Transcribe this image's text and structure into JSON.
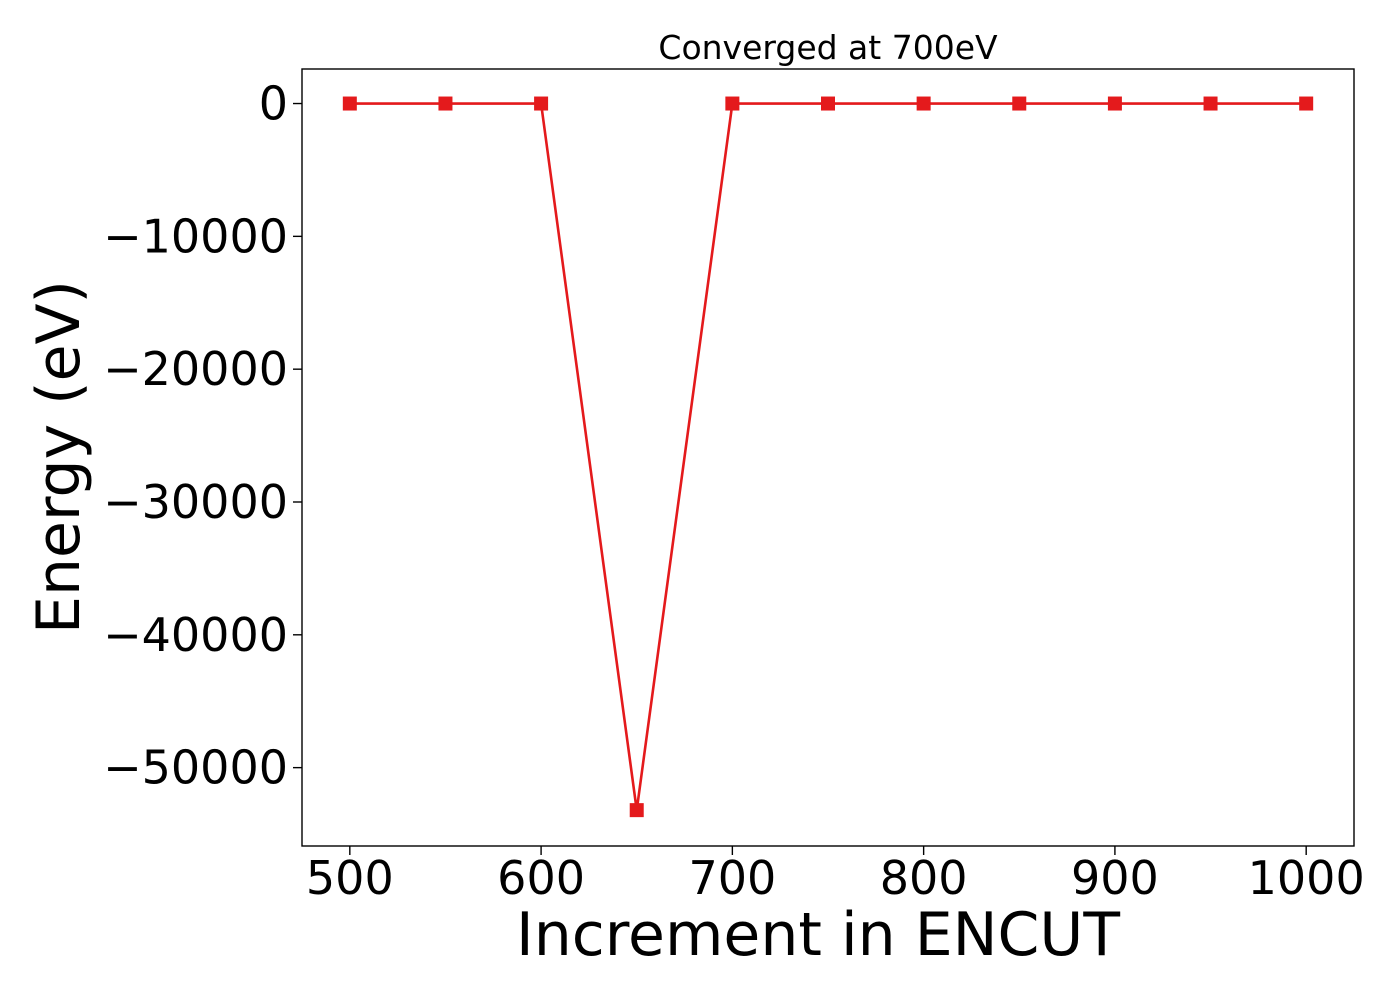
{
  "chart_data": {
    "type": "line",
    "title": "Converged at 700eV",
    "xlabel": "Increment in ENCUT",
    "ylabel": "Energy (eV)",
    "x": [
      500,
      550,
      600,
      650,
      700,
      750,
      800,
      850,
      900,
      950,
      1000
    ],
    "series": [
      {
        "values": [
          0,
          0,
          0,
          -53200,
          0,
          0,
          0,
          0,
          0,
          0,
          0
        ],
        "color": "#e41a1c",
        "marker": "square"
      }
    ],
    "xlim": [
      475,
      1025
    ],
    "ylim": [
      -55900,
      2600
    ],
    "xticks": [
      500,
      600,
      700,
      800,
      900,
      1000
    ],
    "xtick_labels": [
      "500",
      "600",
      "700",
      "800",
      "900",
      "1000"
    ],
    "yticks": [
      0,
      -10000,
      -20000,
      -30000,
      -40000,
      -50000
    ],
    "ytick_labels": [
      "0",
      "−10000",
      "−20000",
      "−30000",
      "−40000",
      "−50000"
    ],
    "grid": false,
    "legend": false
  }
}
